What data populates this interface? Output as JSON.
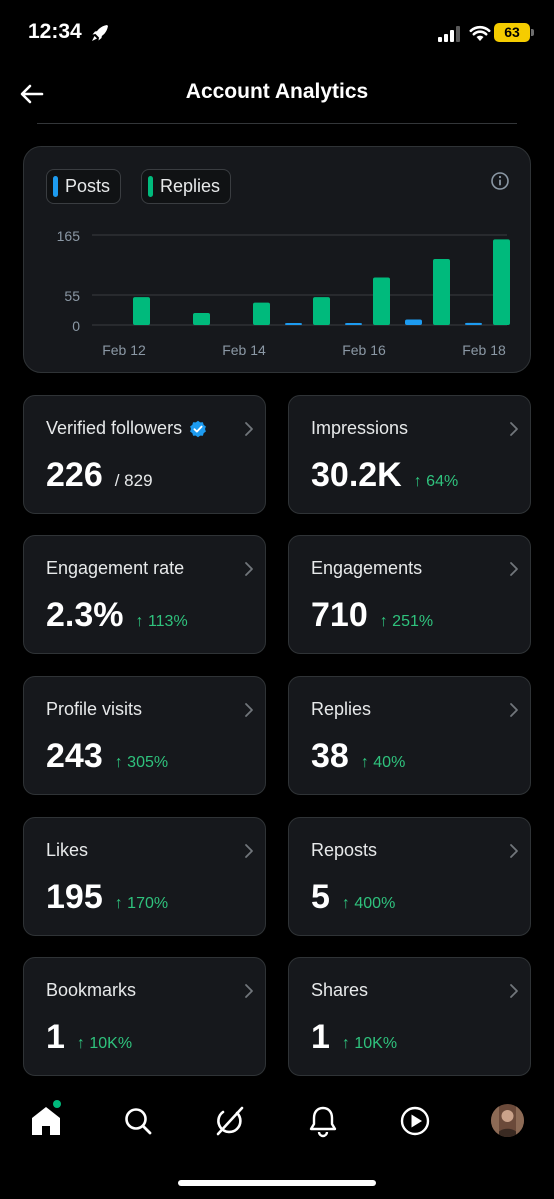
{
  "status_bar": {
    "time": "12:34",
    "battery": "63",
    "icons": [
      "rocket-icon",
      "signal-icon",
      "wifi-icon",
      "battery-icon"
    ]
  },
  "header": {
    "title": "Account Analytics",
    "back_icon": "back-arrow-icon"
  },
  "chart_data": {
    "type": "bar",
    "categories": [
      "Feb 12",
      "Feb 13",
      "Feb 14",
      "Feb 15",
      "Feb 16",
      "Feb 17",
      "Feb 18"
    ],
    "tick_labels": [
      "Feb 12",
      "Feb 14",
      "Feb 16",
      "Feb 18"
    ],
    "series": [
      {
        "name": "Posts",
        "color": "#1d9bf0",
        "values": [
          0,
          0,
          0,
          1,
          2,
          10,
          4
        ]
      },
      {
        "name": "Replies",
        "color": "#00ba7c",
        "values": [
          51,
          22,
          41,
          51,
          87,
          121,
          157
        ]
      }
    ],
    "y_ticks": [
      0,
      55,
      165
    ],
    "ylim": [
      0,
      165
    ],
    "grid": true,
    "legend_placement": "top-left",
    "title": "",
    "xlabel": "",
    "ylabel": ""
  },
  "legend": {
    "posts": "Posts",
    "replies": "Replies"
  },
  "metrics": [
    {
      "label": "Verified followers",
      "value": "226",
      "total": "/ 829",
      "change": "",
      "verified": true
    },
    {
      "label": "Impressions",
      "value": "30.2K",
      "total": "",
      "change": "↑ 64%"
    },
    {
      "label": "Engagement rate",
      "value": "2.3%",
      "total": "",
      "change": "↑ 113%"
    },
    {
      "label": "Engagements",
      "value": "710",
      "total": "",
      "change": "↑ 251%"
    },
    {
      "label": "Profile visits",
      "value": "243",
      "total": "",
      "change": "↑ 305%"
    },
    {
      "label": "Replies",
      "value": "38",
      "total": "",
      "change": "↑ 40%"
    },
    {
      "label": "Likes",
      "value": "195",
      "total": "",
      "change": "↑ 170%"
    },
    {
      "label": "Reposts",
      "value": "5",
      "total": "",
      "change": "↑ 400%"
    },
    {
      "label": "Bookmarks",
      "value": "1",
      "total": "",
      "change": "↑ 10K%"
    },
    {
      "label": "Shares",
      "value": "1",
      "total": "",
      "change": "↑ 10K%"
    }
  ],
  "nav": {
    "items": [
      "home-icon",
      "search-icon",
      "grok-icon",
      "bell-icon",
      "play-icon",
      "avatar"
    ],
    "accent": "#00ba7c"
  }
}
